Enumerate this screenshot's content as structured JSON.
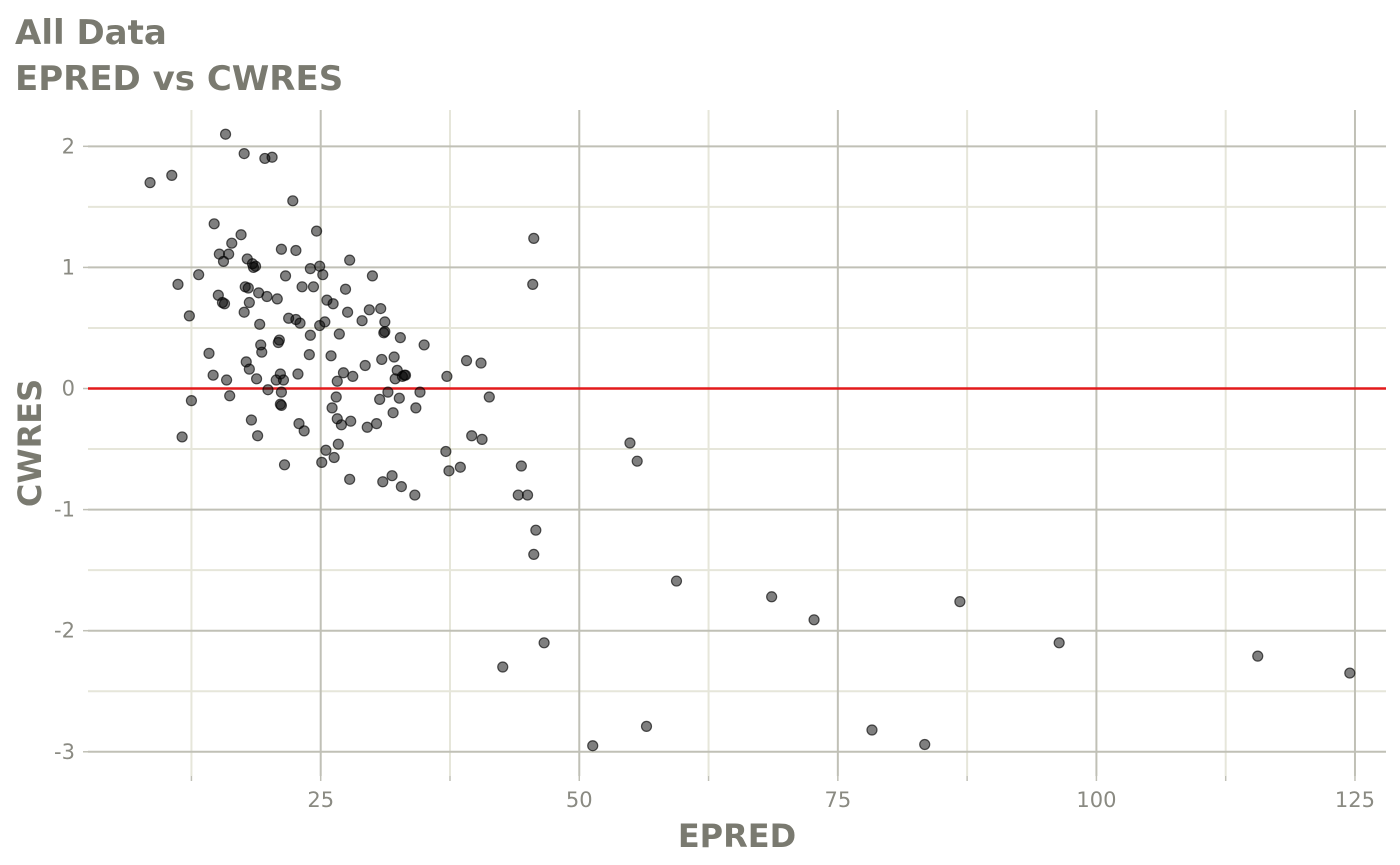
{
  "titles": {
    "line1": "All Data",
    "line2": "EPRED vs CWRES"
  },
  "colors": {
    "text": "#7a7a70",
    "tick_text": "#8a8a82",
    "grid_major": "#c0c0b6",
    "grid_minor": "#e6e6da",
    "reference_line": "#e31a1c",
    "points": "#000000"
  },
  "chart_data": {
    "type": "scatter",
    "xlabel": "EPRED",
    "ylabel": "CWRES",
    "xlim": [
      2.5,
      128
    ],
    "ylim": [
      -3.2,
      2.3
    ],
    "xticks": [
      25,
      50,
      75,
      100,
      125
    ],
    "xtick_labels": [
      "25",
      "50",
      "75",
      "100",
      "125"
    ],
    "yticks": [
      -3,
      -2,
      -1,
      0,
      1,
      2
    ],
    "ytick_labels": [
      "-3",
      "-2",
      "-1",
      "0",
      "1",
      "2"
    ],
    "grid": true,
    "reference_line": {
      "y": 0
    },
    "points": [
      [
        8.5,
        1.7
      ],
      [
        10.6,
        1.76
      ],
      [
        11.2,
        0.86
      ],
      [
        11.6,
        -0.4
      ],
      [
        12.3,
        0.6
      ],
      [
        12.5,
        -0.1
      ],
      [
        13.2,
        0.94
      ],
      [
        14.2,
        0.29
      ],
      [
        14.6,
        0.11
      ],
      [
        14.7,
        1.36
      ],
      [
        15.1,
        0.77
      ],
      [
        15.2,
        1.11
      ],
      [
        15.5,
        0.71
      ],
      [
        15.6,
        1.05
      ],
      [
        15.7,
        0.7
      ],
      [
        15.8,
        2.1
      ],
      [
        15.9,
        0.07
      ],
      [
        16.1,
        1.11
      ],
      [
        16.2,
        -0.06
      ],
      [
        16.4,
        1.2
      ],
      [
        17.3,
        1.27
      ],
      [
        17.6,
        1.94
      ],
      [
        17.6,
        0.63
      ],
      [
        17.7,
        0.84
      ],
      [
        17.8,
        0.22
      ],
      [
        17.9,
        1.07
      ],
      [
        18.0,
        0.83
      ],
      [
        18.1,
        0.71
      ],
      [
        18.1,
        0.16
      ],
      [
        18.3,
        -0.26
      ],
      [
        18.4,
        1.03
      ],
      [
        18.5,
        1.0
      ],
      [
        18.7,
        1.01
      ],
      [
        18.8,
        0.08
      ],
      [
        18.9,
        -0.39
      ],
      [
        19.0,
        0.79
      ],
      [
        19.1,
        0.53
      ],
      [
        19.2,
        0.36
      ],
      [
        19.3,
        0.3
      ],
      [
        19.6,
        1.9
      ],
      [
        19.8,
        0.76
      ],
      [
        19.9,
        -0.01
      ],
      [
        20.3,
        1.91
      ],
      [
        20.7,
        0.07
      ],
      [
        20.8,
        0.74
      ],
      [
        20.9,
        0.38
      ],
      [
        21.0,
        0.4
      ],
      [
        21.1,
        0.12
      ],
      [
        21.1,
        -0.13
      ],
      [
        21.2,
        -0.14
      ],
      [
        21.2,
        -0.03
      ],
      [
        21.2,
        1.15
      ],
      [
        21.4,
        0.07
      ],
      [
        21.5,
        -0.63
      ],
      [
        21.6,
        0.93
      ],
      [
        21.9,
        0.58
      ],
      [
        22.3,
        1.55
      ],
      [
        22.6,
        1.14
      ],
      [
        22.6,
        0.57
      ],
      [
        22.8,
        0.12
      ],
      [
        22.9,
        -0.29
      ],
      [
        23.0,
        0.54
      ],
      [
        23.2,
        0.84
      ],
      [
        23.4,
        -0.35
      ],
      [
        23.9,
        0.28
      ],
      [
        24.0,
        0.99
      ],
      [
        24.0,
        0.44
      ],
      [
        24.3,
        0.84
      ],
      [
        24.6,
        1.3
      ],
      [
        24.9,
        1.01
      ],
      [
        24.9,
        0.52
      ],
      [
        25.1,
        -0.61
      ],
      [
        25.2,
        0.94
      ],
      [
        25.4,
        0.55
      ],
      [
        25.5,
        -0.51
      ],
      [
        25.6,
        0.73
      ],
      [
        26.0,
        0.27
      ],
      [
        26.1,
        -0.16
      ],
      [
        26.2,
        0.7
      ],
      [
        26.3,
        -0.57
      ],
      [
        26.5,
        -0.07
      ],
      [
        26.6,
        0.06
      ],
      [
        26.6,
        -0.25
      ],
      [
        26.7,
        -0.46
      ],
      [
        26.8,
        0.45
      ],
      [
        27.0,
        -0.3
      ],
      [
        27.2,
        0.13
      ],
      [
        27.4,
        0.82
      ],
      [
        27.6,
        0.63
      ],
      [
        27.8,
        1.06
      ],
      [
        27.8,
        -0.75
      ],
      [
        27.9,
        -0.27
      ],
      [
        28.1,
        0.1
      ],
      [
        29.0,
        0.56
      ],
      [
        29.3,
        0.19
      ],
      [
        29.5,
        -0.32
      ],
      [
        29.7,
        0.65
      ],
      [
        30.0,
        0.93
      ],
      [
        30.4,
        -0.29
      ],
      [
        30.7,
        -0.09
      ],
      [
        30.8,
        0.66
      ],
      [
        30.9,
        0.24
      ],
      [
        31.0,
        -0.77
      ],
      [
        31.1,
        0.46
      ],
      [
        31.2,
        0.47
      ],
      [
        31.2,
        0.55
      ],
      [
        31.5,
        -0.03
      ],
      [
        31.9,
        -0.72
      ],
      [
        32.0,
        -0.2
      ],
      [
        32.1,
        0.26
      ],
      [
        32.2,
        0.08
      ],
      [
        32.4,
        0.15
      ],
      [
        32.6,
        -0.08
      ],
      [
        32.7,
        0.42
      ],
      [
        32.8,
        -0.81
      ],
      [
        32.9,
        0.1
      ],
      [
        33.1,
        0.11
      ],
      [
        33.2,
        0.11
      ],
      [
        34.1,
        -0.88
      ],
      [
        34.2,
        -0.16
      ],
      [
        34.6,
        -0.03
      ],
      [
        35.0,
        0.36
      ],
      [
        37.1,
        -0.52
      ],
      [
        37.2,
        0.1
      ],
      [
        37.4,
        -0.68
      ],
      [
        38.5,
        -0.65
      ],
      [
        39.1,
        0.23
      ],
      [
        39.6,
        -0.39
      ],
      [
        40.5,
        0.21
      ],
      [
        40.6,
        -0.42
      ],
      [
        41.3,
        -0.07
      ],
      [
        42.6,
        -2.3
      ],
      [
        44.1,
        -0.88
      ],
      [
        44.4,
        -0.64
      ],
      [
        45.0,
        -0.88
      ],
      [
        45.5,
        0.86
      ],
      [
        45.6,
        -1.37
      ],
      [
        45.6,
        1.24
      ],
      [
        45.8,
        -1.17
      ],
      [
        46.6,
        -2.1
      ],
      [
        51.3,
        -2.95
      ],
      [
        54.9,
        -0.45
      ],
      [
        55.6,
        -0.6
      ],
      [
        56.5,
        -2.79
      ],
      [
        59.4,
        -1.59
      ],
      [
        68.6,
        -1.72
      ],
      [
        72.7,
        -1.91
      ],
      [
        78.3,
        -2.82
      ],
      [
        83.4,
        -2.94
      ],
      [
        86.8,
        -1.76
      ],
      [
        96.4,
        -2.1
      ],
      [
        115.6,
        -2.21
      ],
      [
        124.5,
        -2.35
      ]
    ]
  }
}
